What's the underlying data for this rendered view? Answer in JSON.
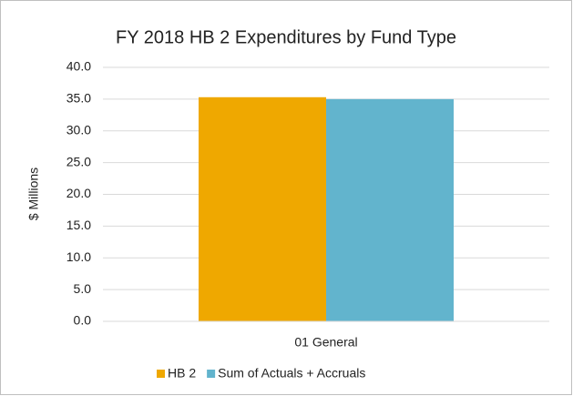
{
  "chart_data": {
    "type": "bar",
    "title": "FY 2018 HB 2 Expenditures  by Fund Type",
    "y_label": "$ Millions",
    "categories": [
      "01 General"
    ],
    "series": [
      {
        "name": "HB 2",
        "color": "#efa800",
        "values": [
          35.3
        ]
      },
      {
        "name": "Sum of Actuals + Accruals",
        "color": "#62b4cd",
        "values": [
          35.0
        ]
      }
    ],
    "ylim": [
      0,
      40
    ],
    "yticks": [
      {
        "value": 0,
        "label": "0.0"
      },
      {
        "value": 5,
        "label": "5.0"
      },
      {
        "value": 10,
        "label": "10.0"
      },
      {
        "value": 15,
        "label": "15.0"
      },
      {
        "value": 20,
        "label": "20.0"
      },
      {
        "value": 25,
        "label": "25.0"
      },
      {
        "value": 30,
        "label": "30.0"
      },
      {
        "value": 35,
        "label": "35.0"
      },
      {
        "value": 40,
        "label": "40.0"
      }
    ],
    "grid": true,
    "legend": "bottom"
  }
}
